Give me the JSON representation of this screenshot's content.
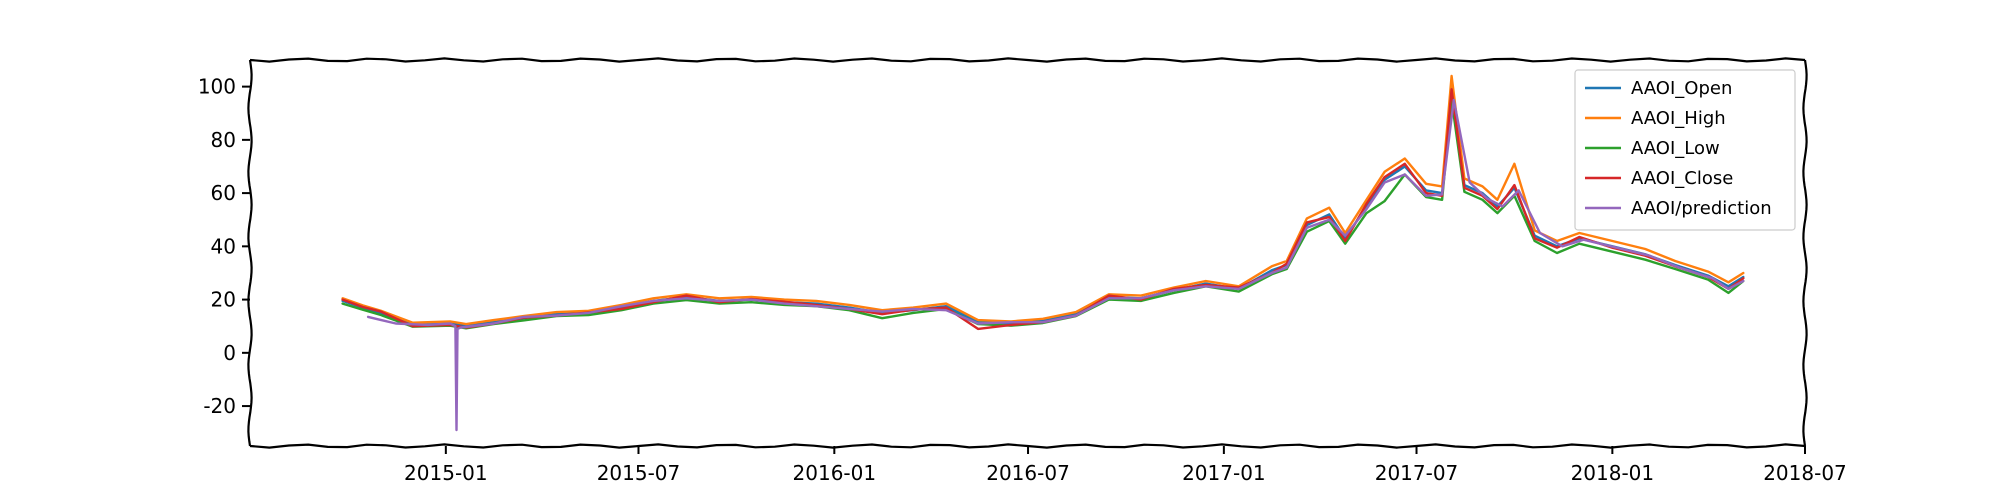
{
  "chart_data": {
    "type": "line",
    "title": "",
    "xlabel": "",
    "ylabel": "",
    "ylim": [
      -35,
      110
    ],
    "xlim": [
      "2014-07-01",
      "2018-07-01"
    ],
    "x_ticks": [
      "2015-01",
      "2015-07",
      "2016-01",
      "2016-07",
      "2017-01",
      "2017-07",
      "2018-01",
      "2018-07"
    ],
    "y_ticks": [
      100,
      80,
      60,
      40,
      20,
      0,
      -20
    ],
    "grid": false,
    "legend_position": "top-right",
    "series": [
      {
        "name": "AAOI_Open",
        "color": "#1f77b4",
        "x": [
          "2014-09-26",
          "2014-10-15",
          "2014-11-01",
          "2014-12-01",
          "2015-01-05",
          "2015-01-20",
          "2015-02-15",
          "2015-03-15",
          "2015-04-15",
          "2015-05-15",
          "2015-06-15",
          "2015-07-15",
          "2015-08-15",
          "2015-09-15",
          "2015-10-15",
          "2015-11-15",
          "2015-12-15",
          "2016-01-15",
          "2016-02-15",
          "2016-03-15",
          "2016-04-15",
          "2016-05-15",
          "2016-06-15",
          "2016-07-15",
          "2016-08-15",
          "2016-09-15",
          "2016-10-15",
          "2016-11-15",
          "2016-12-15",
          "2017-01-15",
          "2017-02-15",
          "2017-03-01",
          "2017-03-20",
          "2017-04-10",
          "2017-04-25",
          "2017-05-15",
          "2017-06-01",
          "2017-06-20",
          "2017-07-10",
          "2017-07-25",
          "2017-08-03",
          "2017-08-15",
          "2017-09-01",
          "2017-09-15",
          "2017-10-01",
          "2017-10-20",
          "2017-11-10",
          "2017-12-01",
          "2018-01-01",
          "2018-02-01",
          "2018-03-01",
          "2018-04-01",
          "2018-04-20",
          "2018-05-04"
        ],
        "values": [
          19.5,
          17.0,
          15.0,
          10.5,
          11.0,
          10.0,
          11.5,
          13.0,
          14.5,
          15.0,
          17.0,
          19.5,
          21.0,
          19.5,
          20.0,
          19.0,
          18.5,
          17.0,
          15.0,
          16.0,
          17.5,
          11.5,
          11.0,
          12.0,
          14.5,
          21.0,
          20.5,
          23.5,
          26.0,
          24.0,
          31.0,
          33.0,
          48.0,
          52.0,
          43.0,
          55.0,
          65.0,
          70.0,
          61.0,
          60.0,
          100.0,
          63.0,
          60.0,
          55.0,
          62.0,
          44.0,
          40.0,
          43.0,
          40.0,
          37.0,
          33.0,
          29.0,
          25.0,
          28.5
        ]
      },
      {
        "name": "AAOI_High",
        "color": "#ff7f0e",
        "x": [
          "2014-09-26",
          "2014-10-15",
          "2014-11-01",
          "2014-12-01",
          "2015-01-05",
          "2015-01-20",
          "2015-02-15",
          "2015-03-15",
          "2015-04-15",
          "2015-05-15",
          "2015-06-15",
          "2015-07-15",
          "2015-08-15",
          "2015-09-15",
          "2015-10-15",
          "2015-11-15",
          "2015-12-15",
          "2016-01-15",
          "2016-02-15",
          "2016-03-15",
          "2016-04-15",
          "2016-05-15",
          "2016-06-15",
          "2016-07-15",
          "2016-08-15",
          "2016-09-15",
          "2016-10-15",
          "2016-11-15",
          "2016-12-15",
          "2017-01-15",
          "2017-02-15",
          "2017-03-01",
          "2017-03-20",
          "2017-04-10",
          "2017-04-25",
          "2017-05-15",
          "2017-06-01",
          "2017-06-20",
          "2017-07-10",
          "2017-07-25",
          "2017-08-03",
          "2017-08-15",
          "2017-09-01",
          "2017-09-15",
          "2017-10-01",
          "2017-10-20",
          "2017-11-10",
          "2017-12-01",
          "2018-01-01",
          "2018-02-01",
          "2018-03-01",
          "2018-04-01",
          "2018-04-20",
          "2018-05-04"
        ],
        "values": [
          20.5,
          17.8,
          15.8,
          11.3,
          11.8,
          10.8,
          12.3,
          13.8,
          15.3,
          15.8,
          18.0,
          20.5,
          22.0,
          20.5,
          21.0,
          20.0,
          19.5,
          18.0,
          16.0,
          17.0,
          18.5,
          12.3,
          11.8,
          12.8,
          15.3,
          22.0,
          21.5,
          24.5,
          27.0,
          25.0,
          32.5,
          34.5,
          50.5,
          54.5,
          45.0,
          57.5,
          68.0,
          73.0,
          63.5,
          62.5,
          104.0,
          65.5,
          62.5,
          57.5,
          71.0,
          46.0,
          42.0,
          45.0,
          42.0,
          39.0,
          34.5,
          30.5,
          26.5,
          30.0
        ]
      },
      {
        "name": "AAOI_Low",
        "color": "#2ca02c",
        "x": [
          "2014-09-26",
          "2014-10-15",
          "2014-11-01",
          "2014-12-01",
          "2015-01-05",
          "2015-01-20",
          "2015-02-15",
          "2015-03-15",
          "2015-04-15",
          "2015-05-15",
          "2015-06-15",
          "2015-07-15",
          "2015-08-15",
          "2015-09-15",
          "2015-10-15",
          "2015-11-15",
          "2015-12-15",
          "2016-01-15",
          "2016-02-15",
          "2016-03-15",
          "2016-04-15",
          "2016-05-15",
          "2016-06-15",
          "2016-07-15",
          "2016-08-15",
          "2016-09-15",
          "2016-10-15",
          "2016-11-15",
          "2016-12-15",
          "2017-01-15",
          "2017-02-15",
          "2017-03-01",
          "2017-03-20",
          "2017-04-10",
          "2017-04-25",
          "2017-05-15",
          "2017-06-01",
          "2017-06-20",
          "2017-07-10",
          "2017-07-25",
          "2017-08-03",
          "2017-08-15",
          "2017-09-01",
          "2017-09-15",
          "2017-10-01",
          "2017-10-20",
          "2017-11-10",
          "2017-12-01",
          "2018-01-01",
          "2018-02-01",
          "2018-03-01",
          "2018-04-01",
          "2018-04-20",
          "2018-05-04"
        ],
        "values": [
          18.5,
          16.2,
          14.2,
          9.8,
          10.2,
          9.2,
          10.8,
          12.2,
          13.8,
          14.2,
          16.0,
          18.5,
          19.8,
          18.5,
          19.0,
          18.0,
          17.5,
          16.0,
          13.0,
          15.0,
          16.5,
          10.8,
          10.2,
          11.2,
          13.8,
          20.0,
          19.5,
          22.5,
          25.0,
          23.0,
          29.5,
          31.5,
          45.5,
          49.5,
          41.0,
          52.5,
          57.0,
          67.0,
          58.5,
          57.5,
          95.0,
          60.5,
          57.5,
          52.5,
          59.0,
          42.0,
          37.5,
          41.0,
          38.0,
          35.0,
          31.5,
          27.5,
          22.5,
          27.0
        ]
      },
      {
        "name": "AAOI_Close",
        "color": "#d62728",
        "x": [
          "2014-09-26",
          "2014-10-15",
          "2014-11-01",
          "2014-12-01",
          "2015-01-05",
          "2015-01-20",
          "2015-02-15",
          "2015-03-15",
          "2015-04-15",
          "2015-05-15",
          "2015-06-15",
          "2015-07-15",
          "2015-08-15",
          "2015-09-15",
          "2015-10-15",
          "2015-11-15",
          "2015-12-15",
          "2016-01-15",
          "2016-02-15",
          "2016-03-15",
          "2016-04-15",
          "2016-05-15",
          "2016-06-15",
          "2016-07-15",
          "2016-08-15",
          "2016-09-15",
          "2016-10-15",
          "2016-11-15",
          "2016-12-15",
          "2017-01-15",
          "2017-02-15",
          "2017-03-01",
          "2017-03-20",
          "2017-04-10",
          "2017-04-25",
          "2017-05-15",
          "2017-06-01",
          "2017-06-20",
          "2017-07-10",
          "2017-07-25",
          "2017-08-03",
          "2017-08-15",
          "2017-09-01",
          "2017-09-15",
          "2017-10-01",
          "2017-10-20",
          "2017-11-10",
          "2017-12-01",
          "2018-01-01",
          "2018-02-01",
          "2018-03-01",
          "2018-04-01",
          "2018-04-20",
          "2018-05-04"
        ],
        "values": [
          20.0,
          17.2,
          15.5,
          10.0,
          10.5,
          9.5,
          11.0,
          13.2,
          14.0,
          15.2,
          16.5,
          19.0,
          21.5,
          19.0,
          20.2,
          19.2,
          18.0,
          16.5,
          14.5,
          16.2,
          17.0,
          9.0,
          10.5,
          11.5,
          14.0,
          21.5,
          20.0,
          24.0,
          25.5,
          24.5,
          30.0,
          33.5,
          49.0,
          51.0,
          42.0,
          56.0,
          66.0,
          71.0,
          60.0,
          59.0,
          99.0,
          62.0,
          59.0,
          54.0,
          63.0,
          43.0,
          39.5,
          43.5,
          39.5,
          36.5,
          32.5,
          28.5,
          24.0,
          28.0
        ]
      },
      {
        "name": "AAOI/prediction",
        "color": "#9467bd",
        "x": [
          "2014-10-20",
          "2014-11-15",
          "2014-12-15",
          "2015-01-05",
          "2015-01-10",
          "2015-01-11",
          "2015-01-12",
          "2015-01-15",
          "2015-02-15",
          "2015-03-15",
          "2015-04-15",
          "2015-05-15",
          "2015-06-15",
          "2015-07-15",
          "2015-08-15",
          "2015-09-15",
          "2015-10-15",
          "2015-11-15",
          "2015-12-15",
          "2016-01-15",
          "2016-02-15",
          "2016-03-15",
          "2016-04-15",
          "2016-05-15",
          "2016-06-15",
          "2016-07-15",
          "2016-08-15",
          "2016-09-15",
          "2016-10-15",
          "2016-11-15",
          "2016-12-15",
          "2017-01-15",
          "2017-02-15",
          "2017-03-01",
          "2017-03-20",
          "2017-04-10",
          "2017-04-25",
          "2017-05-15",
          "2017-06-01",
          "2017-06-20",
          "2017-07-10",
          "2017-07-25",
          "2017-08-05",
          "2017-08-20",
          "2017-09-05",
          "2017-09-20",
          "2017-10-05",
          "2017-10-25",
          "2017-11-15",
          "2017-12-05",
          "2018-01-05",
          "2018-02-05",
          "2018-03-05",
          "2018-04-05",
          "2018-04-20",
          "2018-05-04"
        ],
        "values": [
          13.5,
          11.0,
          10.5,
          11.0,
          10.0,
          -29.0,
          9.0,
          9.5,
          11.0,
          13.5,
          14.0,
          15.0,
          17.5,
          19.5,
          20.5,
          19.5,
          20.0,
          18.5,
          17.5,
          16.5,
          15.5,
          16.5,
          16.0,
          11.0,
          11.5,
          11.5,
          14.0,
          20.5,
          20.5,
          23.5,
          25.0,
          24.0,
          30.0,
          32.0,
          47.0,
          50.0,
          44.0,
          54.0,
          64.0,
          67.0,
          59.0,
          59.5,
          95.0,
          64.0,
          58.0,
          55.0,
          61.0,
          45.0,
          40.0,
          42.5,
          39.5,
          36.5,
          32.0,
          28.0,
          24.0,
          27.0
        ]
      }
    ]
  }
}
